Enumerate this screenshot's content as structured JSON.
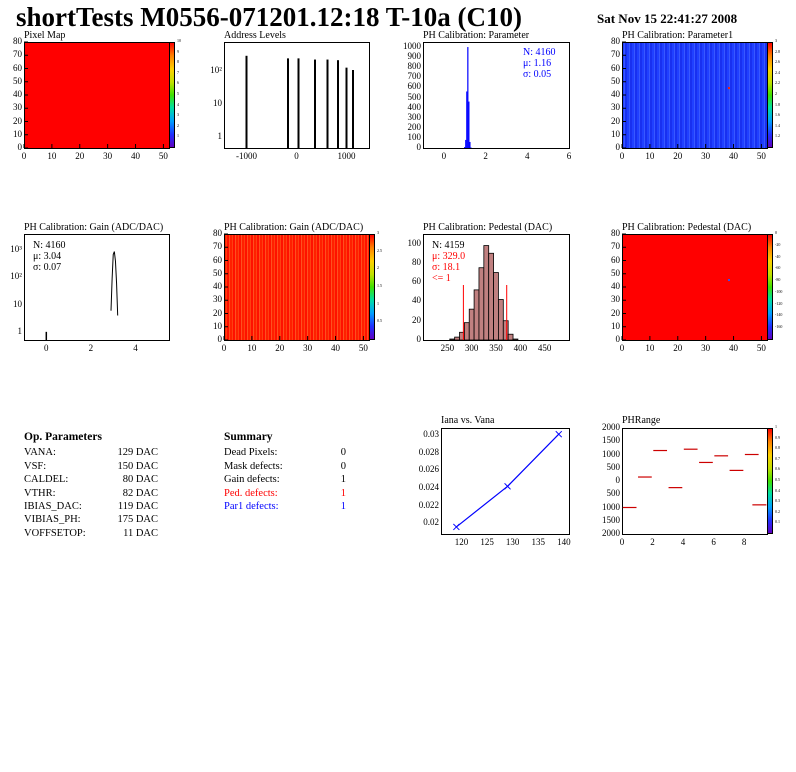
{
  "header": {
    "title": "shortTests M0556-071201.12:18 T-10a (C10)",
    "datestamp": "Sat Nov 15 22:41:27 2008"
  },
  "panels": {
    "pixel_map": {
      "title": "Pixel Map"
    },
    "address_levels": {
      "title": "Address Levels"
    },
    "ph_param": {
      "title": "PH Calibration: Parameter",
      "n": "N: 4160",
      "mu": "μ: 1.16",
      "sigma": "σ: 0.05"
    },
    "ph_param1": {
      "title": "PH Calibration: Parameter1"
    },
    "gain_hist": {
      "title": "PH Calibration: Gain (ADC/DAC)",
      "n": "N: 4160",
      "mu": "μ: 3.04",
      "sigma": "σ: 0.07"
    },
    "gain_map": {
      "title": "PH Calibration: Gain (ADC/DAC)"
    },
    "ped_hist": {
      "title": "PH Calibration: Pedestal (DAC)",
      "n": "N: 4159",
      "mu": "μ: 329.0",
      "sigma": "σ: 18.1",
      "cut": "<= 1"
    },
    "ped_map": {
      "title": "PH Calibration: Pedestal (DAC)"
    },
    "iana": {
      "title": "Iana vs. Vana"
    },
    "phrange": {
      "title": "PHRange"
    }
  },
  "op_parameters": {
    "title": "Op. Parameters",
    "rows": [
      {
        "name": "VANA:",
        "value": "129 DAC"
      },
      {
        "name": "VSF:",
        "value": "150 DAC"
      },
      {
        "name": "CALDEL:",
        "value": "80 DAC"
      },
      {
        "name": "VTHR:",
        "value": "82 DAC"
      },
      {
        "name": "IBIAS_DAC:",
        "value": "119 DAC"
      },
      {
        "name": "VIBIAS_PH:",
        "value": "175 DAC"
      },
      {
        "name": "VOFFSETOP:",
        "value": "11 DAC"
      }
    ]
  },
  "summary": {
    "title": "Summary",
    "rows": [
      {
        "name": "Dead Pixels:",
        "value": "0",
        "color": "#000000"
      },
      {
        "name": "Mask defects:",
        "value": "0",
        "color": "#000000"
      },
      {
        "name": "Gain defects:",
        "value": "1",
        "color": "#000000"
      },
      {
        "name": "Ped. defects:",
        "value": "1",
        "color": "#ff0000"
      },
      {
        "name": "Par1 defects:",
        "value": "1",
        "color": "#0000ff"
      }
    ]
  },
  "colors": {
    "accent_red": "#ff0000",
    "accent_blue": "#0000ff",
    "hist_fill": "#c08080"
  },
  "chart_data": [
    {
      "id": "pixel_map",
      "type": "heatmap",
      "title": "Pixel Map",
      "xlim": [
        0,
        52
      ],
      "ylim": [
        0,
        80
      ],
      "x_ticks": [
        "0",
        "10",
        "20",
        "30",
        "40",
        "50"
      ],
      "y_ticks": [
        "0",
        "10",
        "20",
        "30",
        "40",
        "50",
        "60",
        "70",
        "80"
      ],
      "colorbar": [
        "1",
        "2",
        "3",
        "4",
        "5",
        "6",
        "7",
        "8",
        "9",
        "10"
      ],
      "fill": "uniform red (all at max)"
    },
    {
      "id": "address_levels",
      "type": "bar",
      "title": "Address Levels",
      "log_y": true,
      "x_ticks": [
        "-1000",
        "0",
        "1000"
      ],
      "y_ticks": [
        "1",
        "10",
        "10²"
      ],
      "peaks_x": [
        -1000,
        -170,
        40,
        370,
        620,
        830,
        1000,
        1130
      ],
      "peaks_y": [
        300,
        250,
        250,
        230,
        230,
        220,
        130,
        110
      ]
    },
    {
      "id": "ph_param",
      "type": "bar",
      "title": "PH Calibration: Parameter",
      "xlim": [
        -1,
        6
      ],
      "ylim": [
        0,
        1050
      ],
      "x_ticks": [
        "0",
        "2",
        "4",
        "6"
      ],
      "y_ticks": [
        "0",
        "100",
        "200",
        "300",
        "400",
        "500",
        "600",
        "700",
        "800",
        "900",
        "1000"
      ],
      "x": [
        1.0,
        1.05,
        1.1,
        1.15,
        1.2,
        1.25,
        1.3
      ],
      "values": [
        10,
        80,
        560,
        1000,
        460,
        60,
        5
      ]
    },
    {
      "id": "ph_param1",
      "type": "heatmap",
      "title": "PH Calibration: Parameter1",
      "xlim": [
        0,
        52
      ],
      "ylim": [
        0,
        80
      ],
      "x_ticks": [
        "0",
        "10",
        "20",
        "30",
        "40",
        "50"
      ],
      "y_ticks": [
        "0",
        "10",
        "20",
        "30",
        "40",
        "50",
        "60",
        "70",
        "80"
      ],
      "colorbar": [
        "1.2",
        "1.4",
        "1.6",
        "1.8",
        "2",
        "2.2",
        "2.4",
        "2.6",
        "2.8",
        "3"
      ],
      "hot_pixel": [
        38,
        46
      ]
    },
    {
      "id": "gain_hist",
      "type": "bar",
      "title": "PH Calibration: Gain (ADC/DAC)",
      "log_y": true,
      "xlim": [
        -1,
        5.5
      ],
      "x_ticks": [
        "0",
        "2",
        "4"
      ],
      "y_ticks": [
        "1",
        "10",
        "10²",
        "10³"
      ],
      "x": [
        0.0,
        2.9,
        2.95,
        3.0,
        3.05,
        3.1,
        3.15,
        3.2
      ],
      "values": [
        1,
        6,
        90,
        700,
        900,
        400,
        60,
        4
      ]
    },
    {
      "id": "gain_map",
      "type": "heatmap",
      "title": "PH Calibration: Gain (ADC/DAC)",
      "xlim": [
        0,
        52
      ],
      "ylim": [
        0,
        80
      ],
      "x_ticks": [
        "0",
        "10",
        "20",
        "30",
        "40",
        "50"
      ],
      "y_ticks": [
        "0",
        "10",
        "20",
        "30",
        "40",
        "50",
        "60",
        "70",
        "80"
      ],
      "colorbar": [
        "0.5",
        "1",
        "1.5",
        "2",
        "2.5",
        "3"
      ]
    },
    {
      "id": "ped_hist",
      "type": "bar",
      "title": "PH Calibration: Pedestal (DAC)",
      "xlim": [
        200,
        500
      ],
      "ylim": [
        0,
        110
      ],
      "x_ticks": [
        "250",
        "300",
        "350",
        "400",
        "450"
      ],
      "y_ticks": [
        "0",
        "20",
        "40",
        "60",
        "80",
        "100"
      ],
      "x": [
        260,
        270,
        280,
        290,
        300,
        310,
        320,
        330,
        340,
        350,
        360,
        370,
        380,
        390
      ],
      "values": [
        1,
        3,
        8,
        18,
        32,
        52,
        75,
        98,
        90,
        70,
        42,
        20,
        6,
        1
      ],
      "cut_lines_x": [
        283,
        372
      ]
    },
    {
      "id": "ped_map",
      "type": "heatmap",
      "title": "PH Calibration: Pedestal (DAC)",
      "xlim": [
        0,
        52
      ],
      "ylim": [
        0,
        80
      ],
      "x_ticks": [
        "0",
        "10",
        "20",
        "30",
        "40",
        "50"
      ],
      "y_ticks": [
        "0",
        "10",
        "20",
        "30",
        "40",
        "50",
        "60",
        "70",
        "80"
      ],
      "colorbar": [
        "-160",
        "-140",
        "-120",
        "-100",
        "-80",
        "-60",
        "-40",
        "-20",
        "0"
      ],
      "hot_pixel": [
        38,
        46
      ]
    },
    {
      "id": "iana",
      "type": "line",
      "title": "Iana vs. Vana",
      "xlim": [
        116,
        141
      ],
      "ylim": [
        0.0188,
        0.0308
      ],
      "x_ticks": [
        "120",
        "125",
        "130",
        "135",
        "140"
      ],
      "y_ticks": [
        "0.02",
        "0.022",
        "0.024",
        "0.026",
        "0.028",
        "0.03"
      ],
      "x": [
        119,
        129,
        139
      ],
      "y": [
        0.0196,
        0.0242,
        0.0301
      ]
    },
    {
      "id": "phrange",
      "type": "scatter",
      "title": "PHRange",
      "xlim": [
        0,
        9.5
      ],
      "ylim": [
        -2000,
        2000
      ],
      "x_ticks": [
        "0",
        "2",
        "4",
        "6",
        "8"
      ],
      "y_ticks": [
        "2000",
        "1500",
        "1000",
        "500",
        "0",
        "500",
        "1000",
        "1500",
        "2000"
      ],
      "colorbar": [
        "0.1",
        "0.2",
        "0.3",
        "0.4",
        "0.5",
        "0.6",
        "0.7",
        "0.8",
        "0.9",
        "1"
      ],
      "x": [
        0.5,
        1.5,
        2.5,
        3.5,
        4.5,
        5.5,
        6.5,
        7.5,
        8.5
      ],
      "y": [
        -1000,
        150,
        1150,
        -250,
        1200,
        700,
        950,
        400,
        1000
      ],
      "x2": 9,
      "y2": -900
    }
  ]
}
